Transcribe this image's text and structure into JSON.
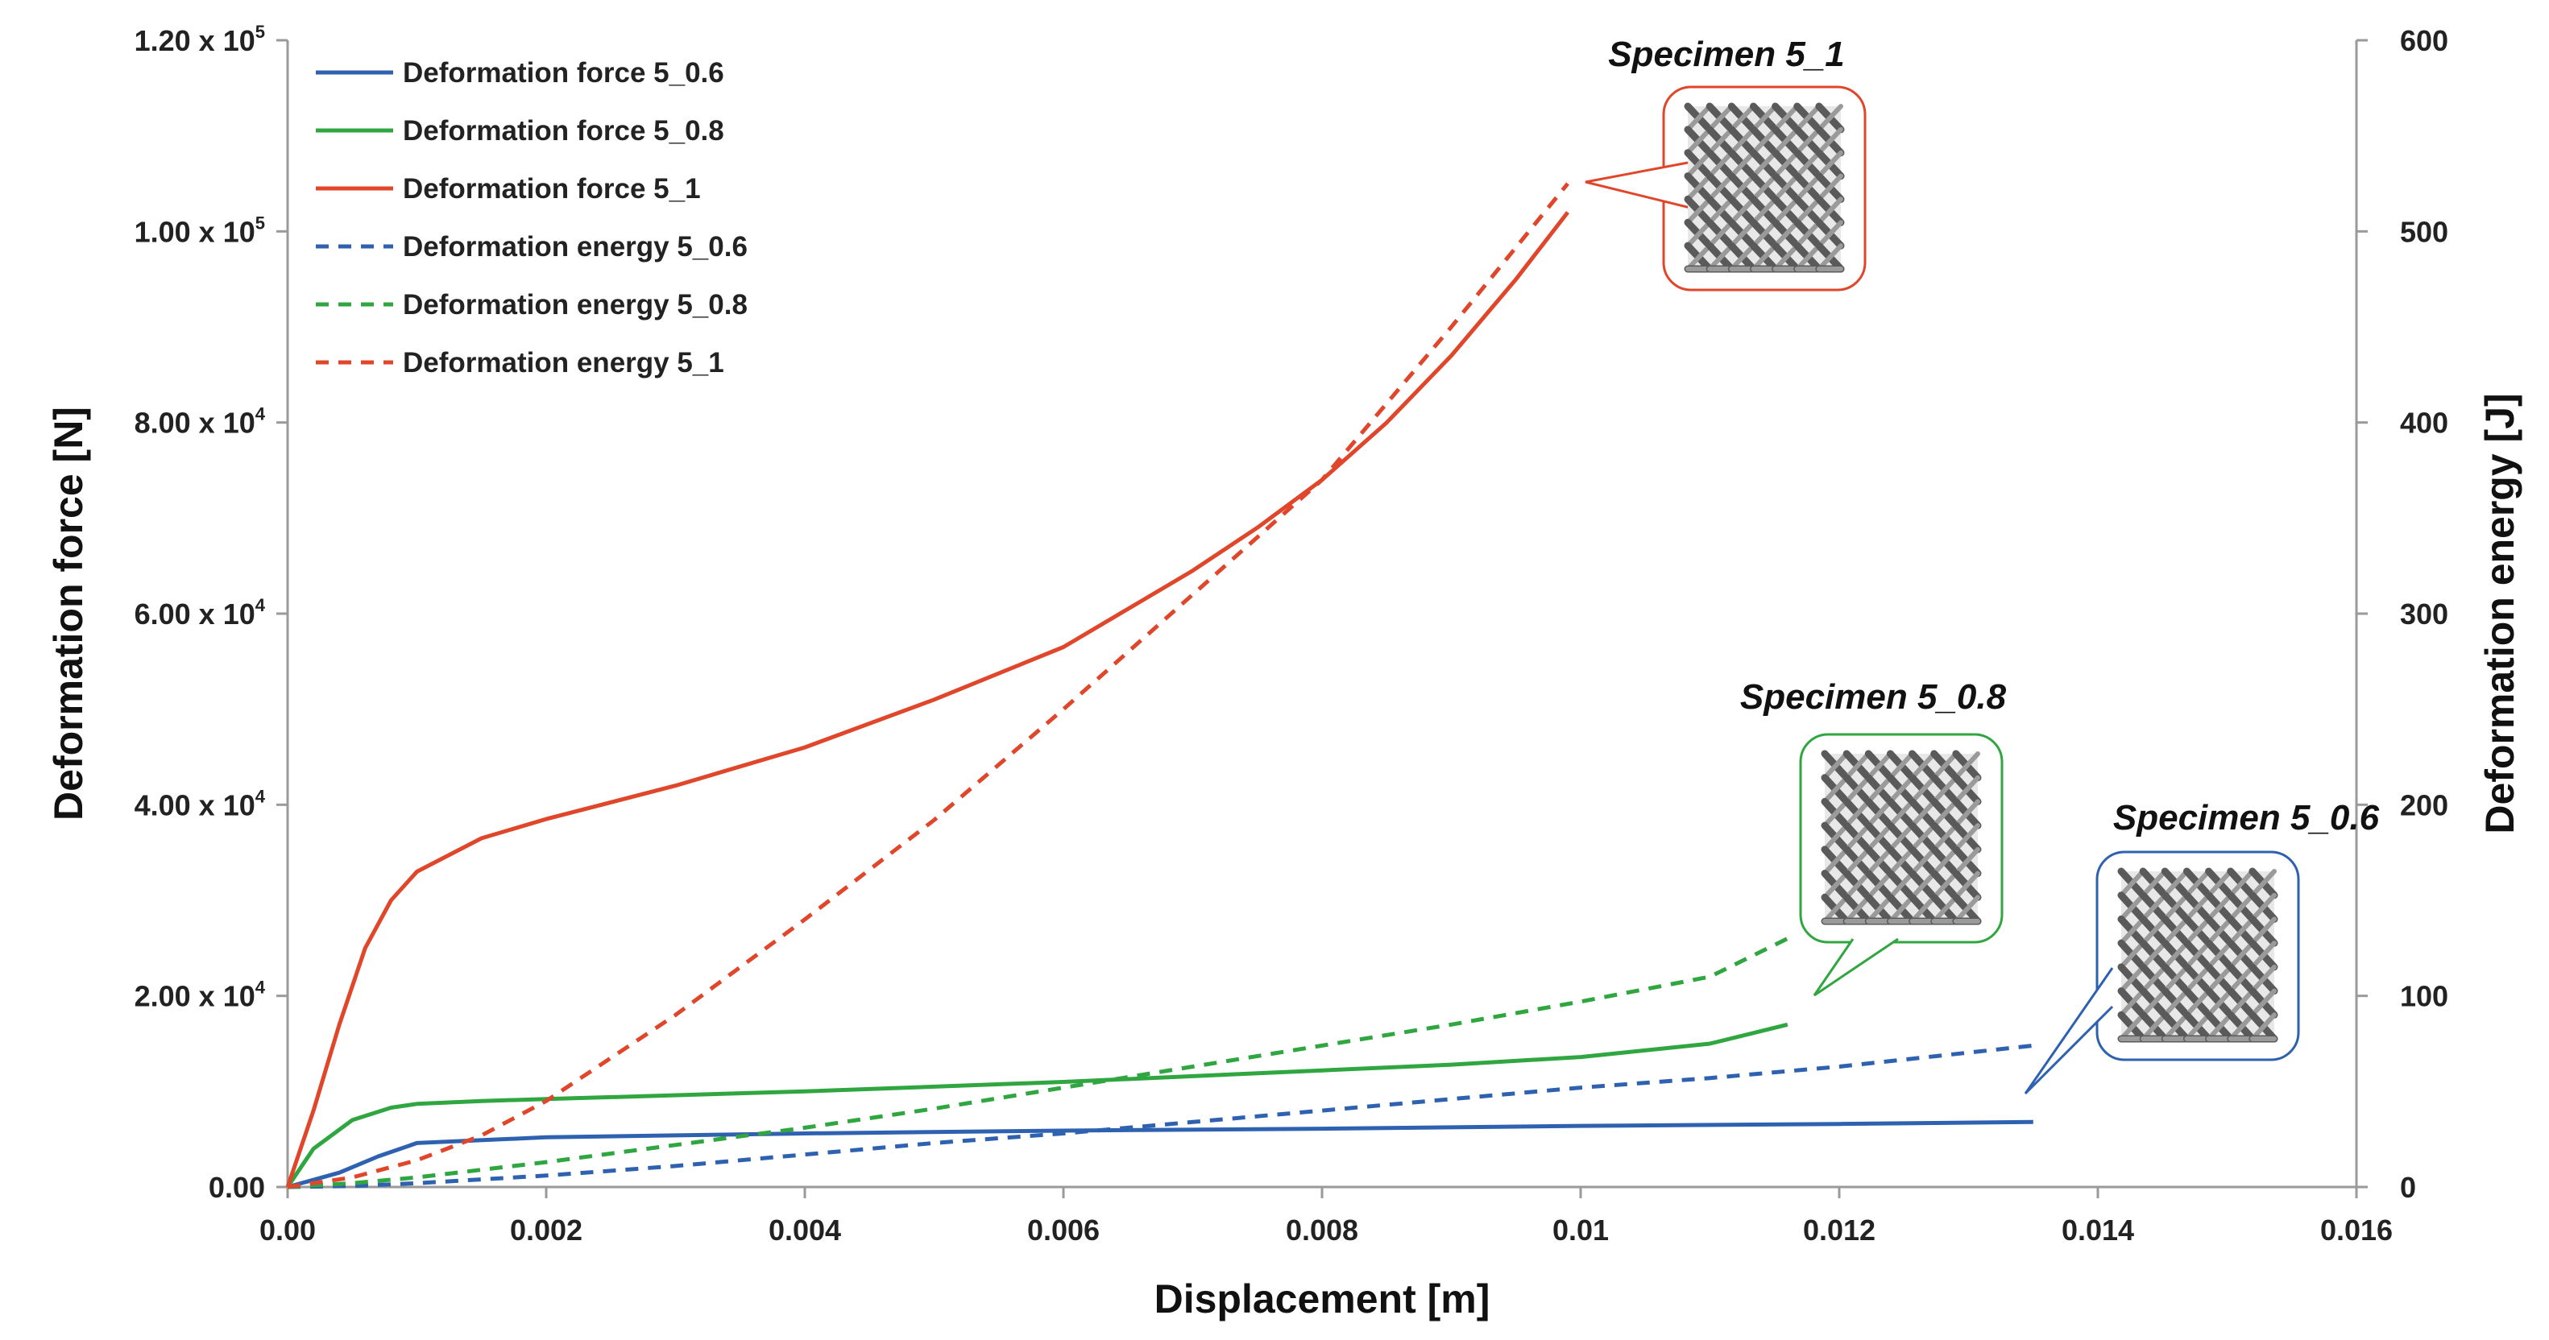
{
  "chart_data": {
    "type": "line",
    "xlabel": "Displacement [m]",
    "ylabel": "Deformation force [N]",
    "y2label": "Deformation energy [J]",
    "xlim": [
      0,
      0.016
    ],
    "ylim": [
      0,
      120000
    ],
    "y2lim": [
      0,
      600
    ],
    "x_tick_labels": [
      "0.00",
      "0.002",
      "0.004",
      "0.006",
      "0.008",
      "0.01",
      "0.012",
      "0.014",
      "0.016"
    ],
    "x_tick_values": [
      0,
      0.002,
      0.004,
      0.006,
      0.008,
      0.01,
      0.012,
      0.014,
      0.016
    ],
    "y_ticks": [
      {
        "value": 0,
        "label": "0.00",
        "exp": ""
      },
      {
        "value": 20000,
        "label": "2.00 x 10",
        "exp": "4"
      },
      {
        "value": 40000,
        "label": "4.00 x 10",
        "exp": "4"
      },
      {
        "value": 60000,
        "label": "6.00 x 10",
        "exp": "4"
      },
      {
        "value": 80000,
        "label": "8.00 x 10",
        "exp": "4"
      },
      {
        "value": 100000,
        "label": "1.00 x 10",
        "exp": "5"
      },
      {
        "value": 120000,
        "label": "1.20 x 10",
        "exp": "5"
      }
    ],
    "y2_tick_labels": [
      "0",
      "100",
      "200",
      "300",
      "400",
      "500",
      "600"
    ],
    "y2_tick_values": [
      0,
      100,
      200,
      300,
      400,
      500,
      600
    ],
    "legend_position": "top-left",
    "series": [
      {
        "name": "Deformation force 5_0.6",
        "axis": "left",
        "color": "#2e62b0",
        "dash": false,
        "x": [
          0,
          0.0004,
          0.0007,
          0.001,
          0.002,
          0.004,
          0.006,
          0.008,
          0.01,
          0.012,
          0.0135
        ],
        "y": [
          0,
          1500,
          3200,
          4600,
          5200,
          5600,
          5900,
          6100,
          6400,
          6600,
          6800
        ]
      },
      {
        "name": "Deformation force 5_0.8",
        "axis": "left",
        "color": "#2fa640",
        "dash": false,
        "x": [
          0,
          0.0002,
          0.0005,
          0.0008,
          0.001,
          0.0015,
          0.002,
          0.004,
          0.006,
          0.008,
          0.009,
          0.01,
          0.011,
          0.0116
        ],
        "y": [
          0,
          4000,
          7000,
          8300,
          8700,
          9000,
          9200,
          10000,
          11000,
          12200,
          12800,
          13600,
          15000,
          17000
        ]
      },
      {
        "name": "Deformation force 5_1",
        "axis": "left",
        "color": "#e0462a",
        "dash": false,
        "x": [
          0,
          0.0002,
          0.0004,
          0.0006,
          0.0008,
          0.001,
          0.0015,
          0.002,
          0.003,
          0.004,
          0.005,
          0.006,
          0.007,
          0.0075,
          0.008,
          0.0085,
          0.009,
          0.0095,
          0.0099
        ],
        "y": [
          0,
          8000,
          17000,
          25000,
          30000,
          33000,
          36500,
          38500,
          42000,
          46000,
          51000,
          56500,
          64500,
          69000,
          74000,
          80000,
          87000,
          95000,
          102000
        ]
      },
      {
        "name": "Deformation energy 5_0.6",
        "axis": "right",
        "color": "#2e62b0",
        "dash": true,
        "x": [
          0,
          0.0005,
          0.001,
          0.002,
          0.003,
          0.004,
          0.005,
          0.006,
          0.007,
          0.008,
          0.009,
          0.01,
          0.011,
          0.012,
          0.0135
        ],
        "y": [
          0,
          0.5,
          2,
          6,
          11,
          17,
          23,
          28,
          34,
          40,
          46,
          52,
          57,
          63,
          74
        ]
      },
      {
        "name": "Deformation energy 5_0.8",
        "axis": "right",
        "color": "#2fa640",
        "dash": true,
        "x": [
          0,
          0.0005,
          0.001,
          0.002,
          0.003,
          0.004,
          0.005,
          0.006,
          0.007,
          0.008,
          0.009,
          0.01,
          0.011,
          0.0116
        ],
        "y": [
          0,
          2,
          5,
          13,
          22,
          31,
          41,
          52,
          63,
          74,
          85,
          97,
          110,
          130
        ]
      },
      {
        "name": "Deformation energy 5_1",
        "axis": "right",
        "color": "#e0462a",
        "dash": true,
        "x": [
          0,
          0.0005,
          0.001,
          0.0015,
          0.002,
          0.003,
          0.004,
          0.005,
          0.006,
          0.007,
          0.008,
          0.009,
          0.0099
        ],
        "y": [
          0,
          5,
          14,
          27,
          45,
          90,
          140,
          192,
          250,
          310,
          370,
          450,
          525
        ]
      }
    ],
    "annotations": [
      {
        "label": "Specimen 5_1",
        "color": "#e0462a"
      },
      {
        "label": "Specimen 5_0.8",
        "color": "#2fa640"
      },
      {
        "label": "Specimen 5_0.6",
        "color": "#2e62b0"
      }
    ]
  }
}
